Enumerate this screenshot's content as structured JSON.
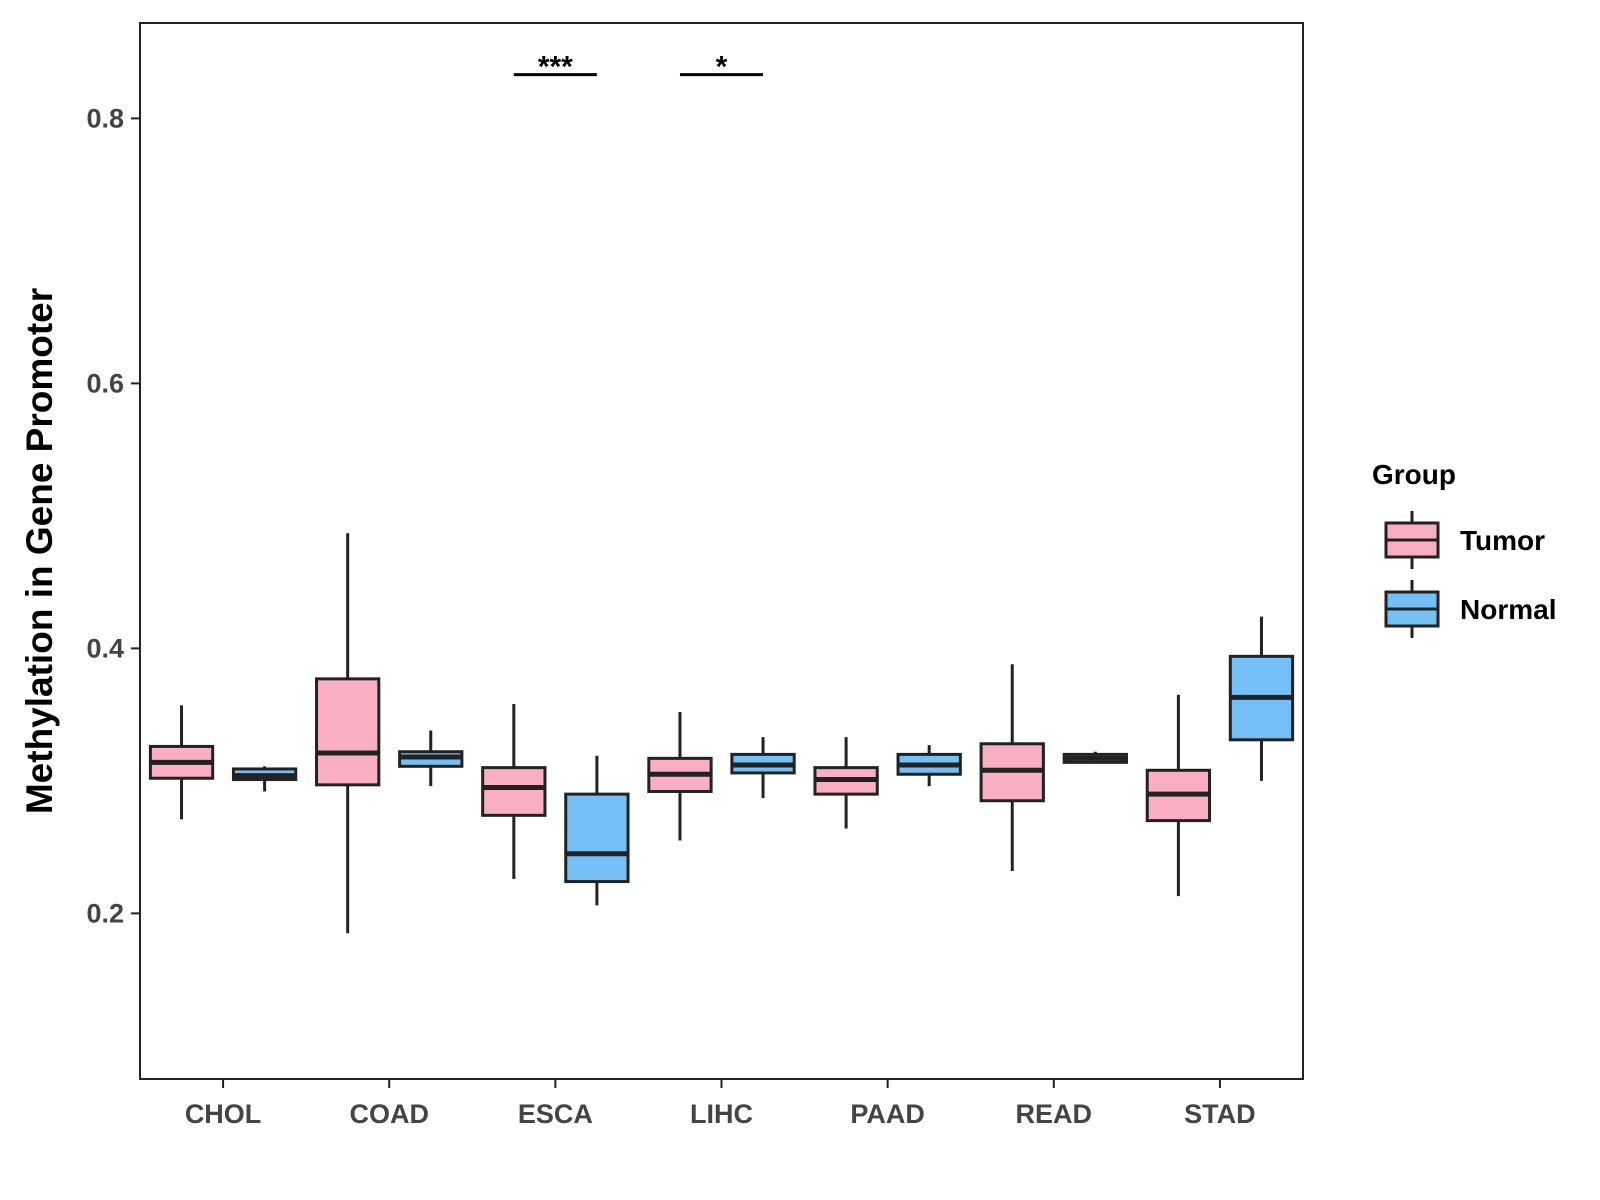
{
  "chart_data": {
    "type": "boxplot",
    "title": "",
    "xlabel": "",
    "ylabel": "Methylation in Gene Promoter",
    "ylim": [
      0.075,
      0.872
    ],
    "yticks": [
      0.2,
      0.4,
      0.6,
      0.8
    ],
    "ytick_labels": [
      "0.2",
      "0.4",
      "0.6",
      "0.8"
    ],
    "grid": false,
    "categories": [
      "CHOL",
      "COAD",
      "ESCA",
      "LIHC",
      "PAAD",
      "READ",
      "STAD"
    ],
    "legend": {
      "title": "Group",
      "position": "right",
      "entries": [
        {
          "name": "Tumor",
          "color": "#F9AEC1"
        },
        {
          "name": "Normal",
          "color": "#74BFF6"
        }
      ]
    },
    "series": [
      {
        "name": "Tumor",
        "color": "#F9AEC1",
        "boxes": [
          {
            "category": "CHOL",
            "min": 0.271,
            "q1": 0.302,
            "median": 0.314,
            "q3": 0.326,
            "max": 0.357
          },
          {
            "category": "COAD",
            "min": 0.185,
            "q1": 0.297,
            "median": 0.321,
            "q3": 0.377,
            "max": 0.487
          },
          {
            "category": "ESCA",
            "min": 0.226,
            "q1": 0.274,
            "median": 0.295,
            "q3": 0.31,
            "max": 0.358
          },
          {
            "category": "LIHC",
            "min": 0.255,
            "q1": 0.292,
            "median": 0.305,
            "q3": 0.317,
            "max": 0.352
          },
          {
            "category": "PAAD",
            "min": 0.264,
            "q1": 0.29,
            "median": 0.301,
            "q3": 0.31,
            "max": 0.333
          },
          {
            "category": "READ",
            "min": 0.232,
            "q1": 0.285,
            "median": 0.308,
            "q3": 0.328,
            "max": 0.388
          },
          {
            "category": "STAD",
            "min": 0.213,
            "q1": 0.27,
            "median": 0.29,
            "q3": 0.308,
            "max": 0.365
          }
        ]
      },
      {
        "name": "Normal",
        "color": "#74BFF6",
        "boxes": [
          {
            "category": "CHOL",
            "min": 0.292,
            "q1": 0.301,
            "median": 0.304,
            "q3": 0.309,
            "max": 0.311
          },
          {
            "category": "COAD",
            "min": 0.296,
            "q1": 0.311,
            "median": 0.318,
            "q3": 0.322,
            "max": 0.338
          },
          {
            "category": "ESCA",
            "min": 0.206,
            "q1": 0.224,
            "median": 0.245,
            "q3": 0.29,
            "max": 0.319
          },
          {
            "category": "LIHC",
            "min": 0.287,
            "q1": 0.306,
            "median": 0.312,
            "q3": 0.32,
            "max": 0.333
          },
          {
            "category": "PAAD",
            "min": 0.296,
            "q1": 0.305,
            "median": 0.312,
            "q3": 0.32,
            "max": 0.327
          },
          {
            "category": "READ",
            "min": 0.313,
            "q1": 0.314,
            "median": 0.317,
            "q3": 0.32,
            "max": 0.322
          },
          {
            "category": "STAD",
            "min": 0.3,
            "q1": 0.331,
            "median": 0.363,
            "q3": 0.394,
            "max": 0.424
          }
        ]
      }
    ],
    "annotations": [
      {
        "category": "ESCA",
        "label": "***",
        "y": 0.833
      },
      {
        "category": "LIHC",
        "label": "*",
        "y": 0.833
      }
    ]
  }
}
